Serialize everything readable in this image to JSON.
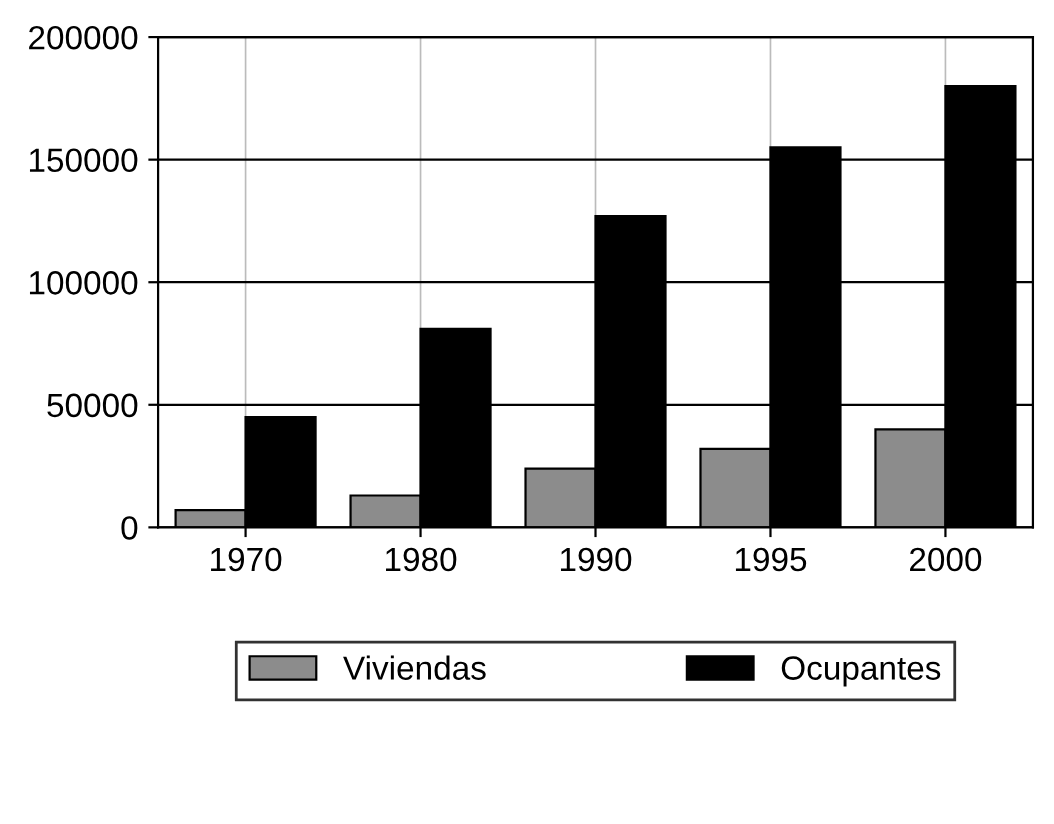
{
  "chart_data": {
    "type": "bar",
    "categories": [
      "1970",
      "1980",
      "1990",
      "1995",
      "2000"
    ],
    "series": [
      {
        "name": "Viviendas",
        "color": "#8c8c8c",
        "values": [
          7000,
          13000,
          24000,
          32000,
          40000
        ]
      },
      {
        "name": "Ocupantes",
        "color": "#000000",
        "values": [
          45000,
          81000,
          127000,
          155000,
          180000
        ]
      }
    ],
    "ylim": [
      0,
      200000
    ],
    "yticks": [
      0,
      50000,
      100000,
      150000,
      200000
    ],
    "grid": true,
    "legend": "bottom"
  }
}
